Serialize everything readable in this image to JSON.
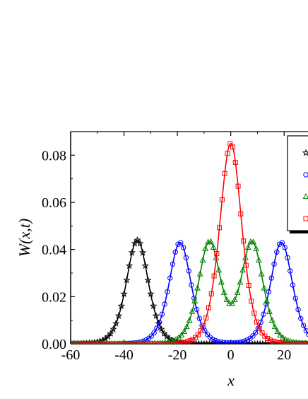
{
  "chart_data": {
    "type": "line",
    "xlabel": "x",
    "ylabel": "W(x,t)",
    "xlim": [
      -60,
      30
    ],
    "ylim": [
      0,
      0.09
    ],
    "xticks": [
      -60,
      -40,
      -20,
      0,
      20
    ],
    "xtick_labels": [
      "-60",
      "-40",
      "-20",
      "0",
      "20"
    ],
    "yticks": [
      0.0,
      0.02,
      0.04,
      0.06,
      0.08
    ],
    "ytick_labels": [
      "0.00",
      "0.02",
      "0.04",
      "0.06",
      "0.08"
    ],
    "grid": false,
    "legend_position": "top-right",
    "series": [
      {
        "color": "#000000",
        "marker": "star",
        "peaks": [
          {
            "x": -35,
            "y": 0.044
          }
        ],
        "width": 5.5
      },
      {
        "color": "#0000ff",
        "marker": "circle",
        "peaks": [
          {
            "x": -19,
            "y": 0.043
          },
          {
            "x": 19,
            "y": 0.043
          }
        ],
        "width": 5.5
      },
      {
        "color": "#008000",
        "marker": "triangle",
        "peaks": [
          {
            "x": -8,
            "y": 0.043
          },
          {
            "x": 8,
            "y": 0.043
          }
        ],
        "width": 5.5
      },
      {
        "color": "#ff0000",
        "marker": "square",
        "peaks": [
          {
            "x": 0,
            "y": 0.085
          }
        ],
        "width": 5.5
      }
    ]
  }
}
